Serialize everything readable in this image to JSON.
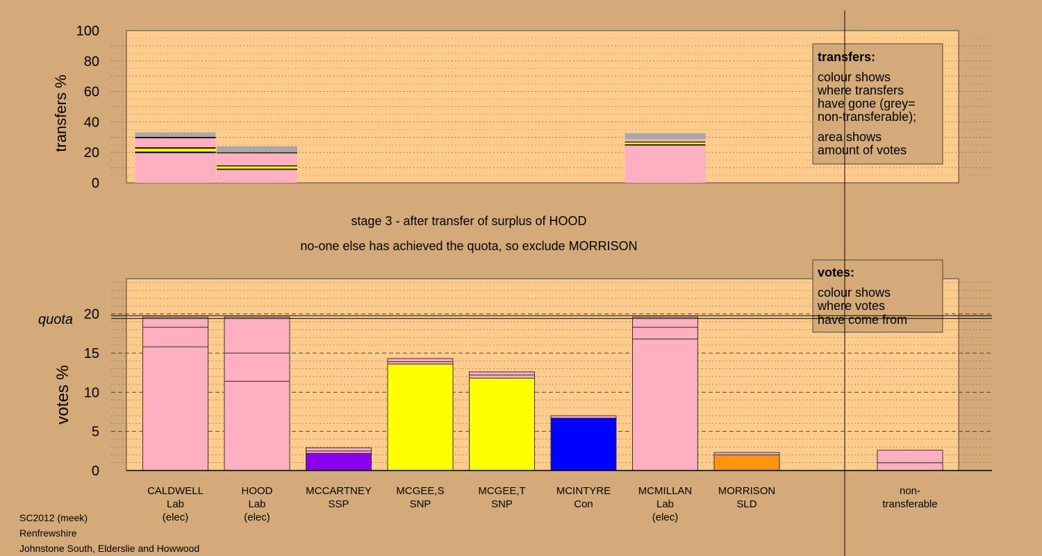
{
  "stage_title": "stage 3 - after transfer of surplus of HOOD",
  "stage_subtitle": "no-one else has achieved the quota, so exclude MORRISON",
  "footer": {
    "line1": "SC2012 (meek)",
    "line2": "Renfrewshire",
    "line3": "Johnstone South, Elderslie and Howwood"
  },
  "colors": {
    "background": "#d4aa78",
    "plot_background": "#ffcc8c",
    "lab": "#ffb0c0",
    "snp": "#ffff00",
    "ssp": "#8800ee",
    "con": "#0000ff",
    "sld": "#ff9410",
    "non_transferable": "#a8a8a8"
  },
  "chart_data": [
    {
      "type": "bar",
      "stacked": true,
      "ylabel": "transfers %",
      "ylim": [
        0,
        100
      ],
      "yticks": [
        0,
        20,
        40,
        60,
        80,
        100
      ],
      "grid": true,
      "legend_box": {
        "title": "transfers:",
        "line1a": "colour shows",
        "line1b": "where transfers",
        "line1c": "have gone (grey=",
        "line1d": "non-transferable);",
        "line2a": "area shows",
        "line2b": "amount of votes"
      },
      "bars": [
        {
          "slot": 0,
          "segments": [
            {
              "value": 19.5,
              "color": "#ffb0c0"
            },
            {
              "value": 1.0,
              "color": "#000000"
            },
            {
              "value": 2.0,
              "color": "#ffff00"
            },
            {
              "value": 0.8,
              "color": "#000000"
            },
            {
              "value": 6.0,
              "color": "#ffb0c0"
            },
            {
              "value": 0.8,
              "color": "#000000"
            },
            {
              "value": 3.0,
              "color": "#a8a8a8"
            }
          ]
        },
        {
          "slot": 1,
          "segments": [
            {
              "value": 8.5,
              "color": "#ffb0c0"
            },
            {
              "value": 0.8,
              "color": "#000000"
            },
            {
              "value": 1.5,
              "color": "#ffff00"
            },
            {
              "value": 0.6,
              "color": "#000000"
            },
            {
              "value": 8.0,
              "color": "#ffb0c0"
            },
            {
              "value": 0.6,
              "color": "#000000"
            },
            {
              "value": 4.0,
              "color": "#a8a8a8"
            }
          ]
        },
        {
          "slot": 6,
          "segments": [
            {
              "value": 24.5,
              "color": "#ffb0c0"
            },
            {
              "value": 0.8,
              "color": "#000000"
            },
            {
              "value": 1.2,
              "color": "#ffff00"
            },
            {
              "value": 0.6,
              "color": "#000000"
            },
            {
              "value": 1.5,
              "color": "#ffb0c0"
            },
            {
              "value": 4.0,
              "color": "#a8a8a8"
            }
          ]
        }
      ]
    },
    {
      "type": "bar",
      "stacked": true,
      "ylabel": "votes %",
      "ylim": [
        0,
        24.5
      ],
      "yticks": [
        0,
        5,
        10,
        15,
        20
      ],
      "quota": 19.6,
      "quota_label": "quota",
      "grid": true,
      "legend_box": {
        "title": "votes:",
        "line1a": "colour shows",
        "line1b": "where votes",
        "line1c": "have come from"
      },
      "categories": [
        {
          "name": "CALDWELL",
          "party": "Lab",
          "status": "(elec)"
        },
        {
          "name": "HOOD",
          "party": "Lab",
          "status": "(elec)"
        },
        {
          "name": "MCCARTNEY",
          "party": "SSP",
          "status": ""
        },
        {
          "name": "MCGEE,S",
          "party": "SNP",
          "status": ""
        },
        {
          "name": "MCGEE,T",
          "party": "SNP",
          "status": ""
        },
        {
          "name": "MCINTYRE",
          "party": "Con",
          "status": ""
        },
        {
          "name": "MCMILLAN",
          "party": "Lab",
          "status": "(elec)"
        },
        {
          "name": "MORRISON",
          "party": "SLD",
          "status": ""
        },
        {
          "name": "",
          "party": "",
          "status": ""
        },
        {
          "name": "non-",
          "party": "transferable",
          "status": ""
        }
      ],
      "bars": [
        {
          "slot": 0,
          "segments": [
            {
              "value": 15.8,
              "color": "#ffb0c0"
            },
            {
              "value": 2.5,
              "color": "#ffb0c0"
            },
            {
              "value": 1.3,
              "color": "#ffb0c0"
            }
          ]
        },
        {
          "slot": 1,
          "segments": [
            {
              "value": 11.4,
              "color": "#ffb0c0"
            },
            {
              "value": 3.6,
              "color": "#ffb0c0"
            },
            {
              "value": 4.6,
              "color": "#ffb0c0"
            }
          ]
        },
        {
          "slot": 2,
          "segments": [
            {
              "value": 2.2,
              "color": "#8800ee"
            },
            {
              "value": 0.3,
              "color": "#ffb0c0"
            },
            {
              "value": 0.4,
              "color": "#ffb0c0"
            }
          ]
        },
        {
          "slot": 3,
          "segments": [
            {
              "value": 13.6,
              "color": "#ffff00"
            },
            {
              "value": 0.3,
              "color": "#ffb0c0"
            },
            {
              "value": 0.4,
              "color": "#ffb0c0"
            }
          ]
        },
        {
          "slot": 4,
          "segments": [
            {
              "value": 11.8,
              "color": "#ffff00"
            },
            {
              "value": 0.4,
              "color": "#ffb0c0"
            },
            {
              "value": 0.4,
              "color": "#ffb0c0"
            }
          ]
        },
        {
          "slot": 5,
          "segments": [
            {
              "value": 6.7,
              "color": "#0000ff"
            },
            {
              "value": 0.3,
              "color": "#ffb0c0"
            }
          ]
        },
        {
          "slot": 6,
          "segments": [
            {
              "value": 16.8,
              "color": "#ffb0c0"
            },
            {
              "value": 1.5,
              "color": "#ffb0c0"
            },
            {
              "value": 1.3,
              "color": "#ffb0c0"
            }
          ]
        },
        {
          "slot": 7,
          "segments": [
            {
              "value": 2.0,
              "color": "#ff9410"
            },
            {
              "value": 0.3,
              "color": "#ffb0c0"
            }
          ]
        },
        {
          "slot": 9,
          "segments": [
            {
              "value": 1.0,
              "color": "#ffb0c0"
            },
            {
              "value": 1.6,
              "color": "#ffb0c0"
            }
          ]
        }
      ]
    }
  ]
}
